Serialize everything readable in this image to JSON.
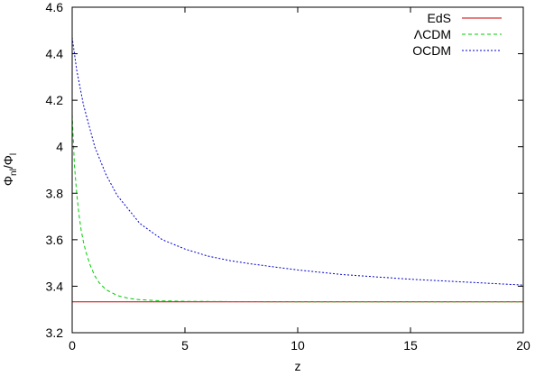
{
  "chart_data": {
    "type": "line",
    "xlabel": "z",
    "ylabel": "Φnl/Φl",
    "ylabel_main": "Φ",
    "ylabel_main_sub": "nl",
    "ylabel_sep": "/Φ",
    "ylabel_sep_sub": "l",
    "xlim": [
      0,
      20
    ],
    "ylim": [
      3.2,
      4.6
    ],
    "xticks": [
      0,
      5,
      10,
      15,
      20
    ],
    "xtick_labels": [
      "0",
      "5",
      "10",
      "15",
      "20"
    ],
    "yticks": [
      3.2,
      3.4,
      3.6,
      3.8,
      4.0,
      4.2,
      4.4,
      4.6
    ],
    "ytick_labels": [
      "3.2",
      "3.4",
      "3.6",
      "3.8",
      "4",
      "4.2",
      "4.4",
      "4.6"
    ],
    "grid": false,
    "legend_position": "top-right",
    "series": [
      {
        "name": "EdS",
        "color": "#cc0000",
        "dash": "solid",
        "x": [
          0,
          20
        ],
        "y": [
          3.333,
          3.333
        ]
      },
      {
        "name": "ΛCDM",
        "color": "#00cc00",
        "dash": "dashed",
        "x": [
          0,
          0.1,
          0.2,
          0.3,
          0.4,
          0.5,
          0.6,
          0.8,
          1.0,
          1.2,
          1.5,
          2.0,
          2.5,
          3.0,
          4.0,
          5.0,
          7.0,
          10.0,
          15.0,
          20.0
        ],
        "y": [
          4.14,
          3.92,
          3.8,
          3.71,
          3.64,
          3.59,
          3.55,
          3.49,
          3.445,
          3.415,
          3.385,
          3.36,
          3.348,
          3.342,
          3.337,
          3.335,
          3.334,
          3.333,
          3.333,
          3.333
        ]
      },
      {
        "name": "OCDM",
        "color": "#0000cc",
        "dash": "dotted",
        "x": [
          0,
          0.2,
          0.5,
          1.0,
          1.5,
          2.0,
          3.0,
          4.0,
          5.0,
          6.0,
          7.0,
          8.0,
          10.0,
          12.0,
          15.0,
          18.0,
          20.0
        ],
        "y": [
          4.47,
          4.33,
          4.18,
          4.0,
          3.88,
          3.79,
          3.67,
          3.6,
          3.56,
          3.53,
          3.51,
          3.495,
          3.47,
          3.45,
          3.43,
          3.415,
          3.405
        ]
      }
    ]
  }
}
